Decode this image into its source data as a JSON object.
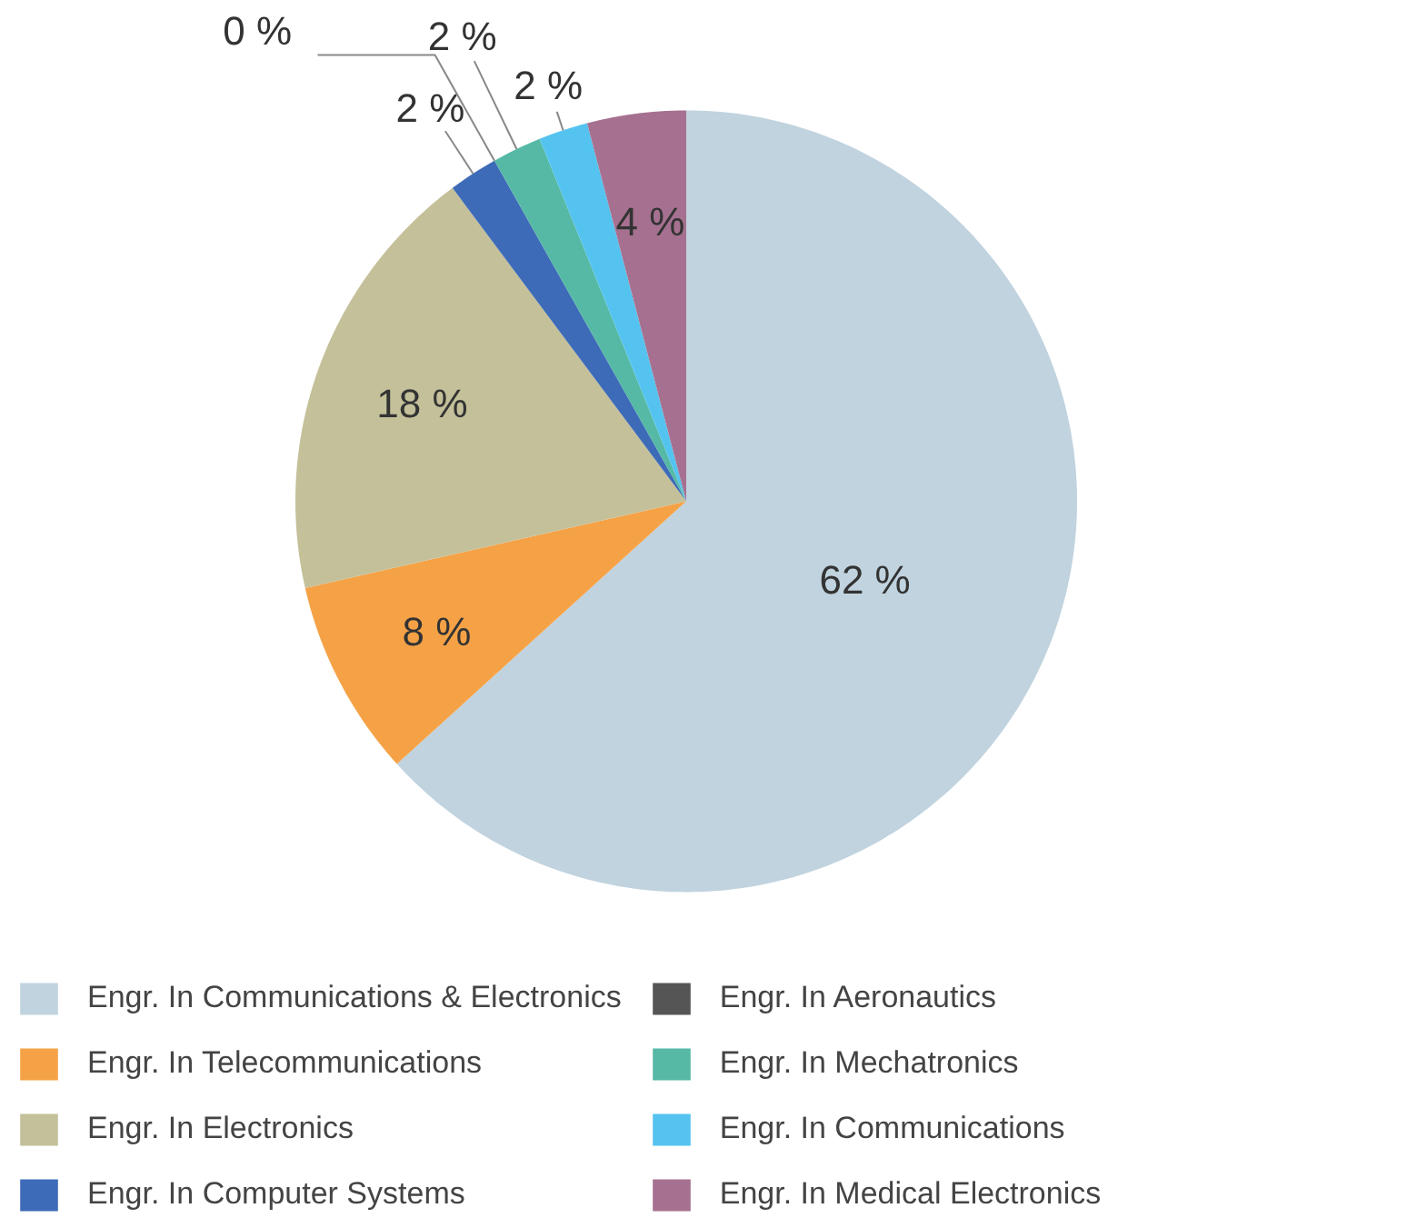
{
  "chart_data": {
    "type": "pie",
    "categories": [
      "Engr. In Communications & Electronics",
      "Engr. In Telecommunications",
      "Engr. In Electronics",
      "Engr. In Computer Systems",
      "Engr. In Aeronautics",
      "Engr. In Mechatronics",
      "Engr. In Communications",
      "Engr. In Medical Electronics"
    ],
    "values": [
      62,
      8,
      18,
      2,
      0,
      2,
      2,
      4
    ],
    "colors": [
      "#c0d3df",
      "#f5a247",
      "#c4c09a",
      "#3d6bb8",
      "#555555",
      "#55b9a5",
      "#55c3ef",
      "#a67190"
    ],
    "value_labels": [
      "62 %",
      "8 %",
      "18 %",
      "2 %",
      "0 %",
      "2 %",
      "2 %",
      "4 %"
    ],
    "data_labels": true,
    "legend": "bottom"
  }
}
